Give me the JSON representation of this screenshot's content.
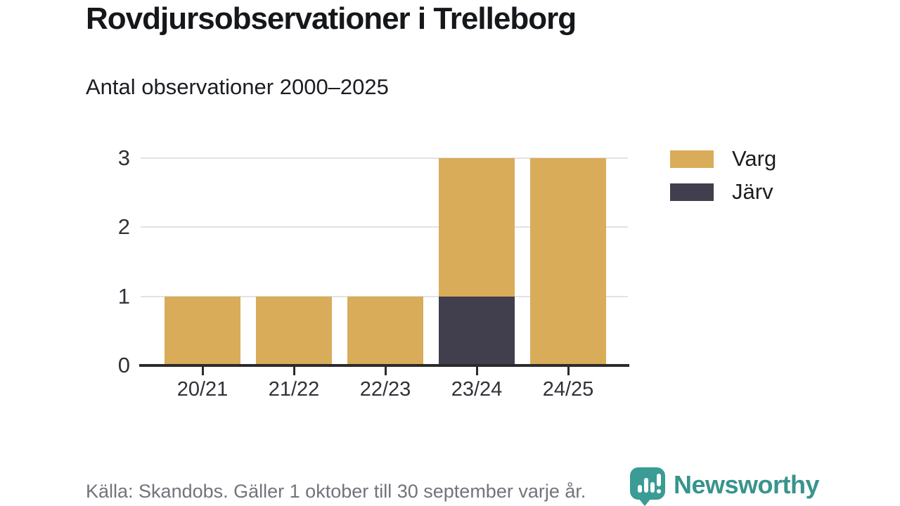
{
  "title": "Rovdjursobservationer i Trelleborg",
  "subtitle": "Antal observationer 2000–2025",
  "source_note": "Källa: Skandobs. Gäller 1 oktober till 30 september varje år.",
  "brand": {
    "name": "Newsworthy",
    "logo_icon": "bar-chart-speech-bubble-icon"
  },
  "colors": {
    "varg": "#d9ac59",
    "jarv": "#413f4e",
    "axis": "#2b2b2b",
    "grid": "#e3e3e3",
    "brand_teal": "#38948d",
    "footer_gray": "#73737b"
  },
  "legend": [
    {
      "label": "Varg",
      "color": "#d9ac59"
    },
    {
      "label": "Järv",
      "color": "#413f4e"
    }
  ],
  "chart_data": {
    "type": "bar",
    "stacked": true,
    "title": "Rovdjursobservationer i Trelleborg",
    "subtitle": "Antal observationer 2000–2025",
    "categories": [
      "20/21",
      "21/22",
      "22/23",
      "23/24",
      "24/25"
    ],
    "series": [
      {
        "name": "Varg",
        "color": "#d9ac59",
        "values": [
          1,
          1,
          1,
          2,
          3
        ]
      },
      {
        "name": "Järv",
        "color": "#413f4e",
        "values": [
          0,
          0,
          0,
          1,
          0
        ]
      }
    ],
    "totals": [
      1,
      1,
      1,
      3,
      3
    ],
    "stack_bottom_to_top": [
      "Järv",
      "Varg"
    ],
    "xlabel": "",
    "ylabel": "",
    "yticks": [
      0,
      1,
      2,
      3
    ],
    "ylim": [
      0,
      3
    ],
    "grid": true,
    "legend_position": "right"
  }
}
